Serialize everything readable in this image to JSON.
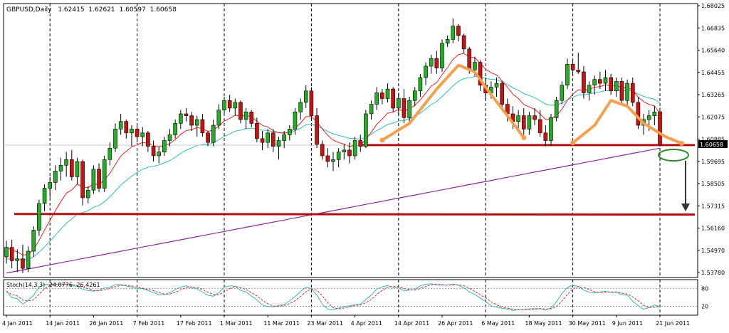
{
  "header": {
    "symbol": "GBPUSD,Daily",
    "open": "1.62415",
    "high": "1.62621",
    "low": "1.60597",
    "close": "1.60658"
  },
  "indicator": {
    "label": "Stoch(14,3,3)",
    "main": "24.0776",
    "signal": "26.4261",
    "levels": [
      "80",
      "20"
    ]
  },
  "colors": {
    "up_candle": "#22b022",
    "down_candle": "#cc1111",
    "ma_fast": "#ee2222",
    "ma_mid": "#33bbbb",
    "ma_slow": "#8a2a9a",
    "support_line": "#b01010",
    "pattern": "#f4a04c",
    "stoch_main": "#33bbbb",
    "stoch_signal": "#ee2222",
    "current_price_box": "#000000"
  },
  "chart_data": {
    "type": "candlestick",
    "title": "GBPUSD,Daily",
    "y_ticks": [
      "1.68025",
      "1.66835",
      "1.65640",
      "1.64455",
      "1.63265",
      "1.62075",
      "1.60885",
      "1.59695",
      "1.58505",
      "1.57315",
      "1.56160",
      "1.54970",
      "1.53780"
    ],
    "x_ticks": [
      "4 Jan 2011",
      "14 Jan 2011",
      "26 Jan 2011",
      "7 Feb 2011",
      "17 Feb 2011",
      "1 Mar 2011",
      "11 Mar 2011",
      "23 Mar 2011",
      "4 Apr 2011",
      "14 Apr 2011",
      "26 Apr 2011",
      "6 May 2011",
      "18 May 2011",
      "30 May 2011",
      "9 Jun 2011",
      "21 Jun 2011"
    ],
    "ylim": [
      1.5372,
      1.6808
    ],
    "current_price": "1.60658",
    "support_level": 1.6066,
    "target_level": 1.5705,
    "stoch_ylim": [
      0,
      100
    ],
    "candles": [
      {
        "d": "2011-01-04",
        "o": 1.548,
        "h": 1.5565,
        "l": 1.5445,
        "c": 1.553
      },
      {
        "d": "2011-01-05",
        "o": 1.553,
        "h": 1.557,
        "l": 1.542,
        "c": 1.546
      },
      {
        "d": "2011-01-06",
        "o": 1.546,
        "h": 1.552,
        "l": 1.54,
        "c": 1.547
      },
      {
        "d": "2011-01-07",
        "o": 1.547,
        "h": 1.5545,
        "l": 1.5395,
        "c": 1.542
      },
      {
        "d": "2011-01-10",
        "o": 1.542,
        "h": 1.5535,
        "l": 1.54,
        "c": 1.551
      },
      {
        "d": "2011-01-11",
        "o": 1.551,
        "h": 1.564,
        "l": 1.548,
        "c": 1.562
      },
      {
        "d": "2011-01-12",
        "o": 1.562,
        "h": 1.578,
        "l": 1.559,
        "c": 1.576
      },
      {
        "d": "2011-01-13",
        "o": 1.576,
        "h": 1.586,
        "l": 1.572,
        "c": 1.584
      },
      {
        "d": "2011-01-14",
        "o": 1.584,
        "h": 1.59,
        "l": 1.579,
        "c": 1.587
      },
      {
        "d": "2011-01-17",
        "o": 1.587,
        "h": 1.596,
        "l": 1.583,
        "c": 1.593
      },
      {
        "d": "2011-01-18",
        "o": 1.593,
        "h": 1.6,
        "l": 1.588,
        "c": 1.596
      },
      {
        "d": "2011-01-19",
        "o": 1.596,
        "h": 1.603,
        "l": 1.59,
        "c": 1.599
      },
      {
        "d": "2011-01-20",
        "o": 1.599,
        "h": 1.604,
        "l": 1.588,
        "c": 1.59
      },
      {
        "d": "2011-01-21",
        "o": 1.59,
        "h": 1.6,
        "l": 1.586,
        "c": 1.598
      },
      {
        "d": "2011-01-24",
        "o": 1.598,
        "h": 1.599,
        "l": 1.575,
        "c": 1.579
      },
      {
        "d": "2011-01-25",
        "o": 1.579,
        "h": 1.585,
        "l": 1.576,
        "c": 1.583
      },
      {
        "d": "2011-01-26",
        "o": 1.583,
        "h": 1.596,
        "l": 1.581,
        "c": 1.594
      },
      {
        "d": "2011-01-27",
        "o": 1.594,
        "h": 1.597,
        "l": 1.582,
        "c": 1.584
      },
      {
        "d": "2011-01-28",
        "o": 1.584,
        "h": 1.601,
        "l": 1.582,
        "c": 1.599
      },
      {
        "d": "2011-01-31",
        "o": 1.599,
        "h": 1.608,
        "l": 1.596,
        "c": 1.605
      },
      {
        "d": "2011-02-01",
        "o": 1.605,
        "h": 1.618,
        "l": 1.603,
        "c": 1.615
      },
      {
        "d": "2011-02-02",
        "o": 1.615,
        "h": 1.623,
        "l": 1.612,
        "c": 1.619
      },
      {
        "d": "2011-02-03",
        "o": 1.619,
        "h": 1.62,
        "l": 1.61,
        "c": 1.613
      },
      {
        "d": "2011-02-04",
        "o": 1.613,
        "h": 1.617,
        "l": 1.606,
        "c": 1.615
      },
      {
        "d": "2011-02-07",
        "o": 1.615,
        "h": 1.617,
        "l": 1.608,
        "c": 1.611
      },
      {
        "d": "2011-02-08",
        "o": 1.611,
        "h": 1.616,
        "l": 1.606,
        "c": 1.613
      },
      {
        "d": "2011-02-09",
        "o": 1.613,
        "h": 1.614,
        "l": 1.603,
        "c": 1.606
      },
      {
        "d": "2011-02-10",
        "o": 1.606,
        "h": 1.609,
        "l": 1.598,
        "c": 1.601
      },
      {
        "d": "2011-02-11",
        "o": 1.601,
        "h": 1.606,
        "l": 1.597,
        "c": 1.603
      },
      {
        "d": "2011-02-14",
        "o": 1.603,
        "h": 1.611,
        "l": 1.601,
        "c": 1.609
      },
      {
        "d": "2011-02-15",
        "o": 1.609,
        "h": 1.615,
        "l": 1.606,
        "c": 1.612
      },
      {
        "d": "2011-02-16",
        "o": 1.612,
        "h": 1.62,
        "l": 1.61,
        "c": 1.618
      },
      {
        "d": "2011-02-17",
        "o": 1.618,
        "h": 1.625,
        "l": 1.615,
        "c": 1.623
      },
      {
        "d": "2011-02-18",
        "o": 1.623,
        "h": 1.626,
        "l": 1.619,
        "c": 1.622
      },
      {
        "d": "2011-02-21",
        "o": 1.622,
        "h": 1.624,
        "l": 1.614,
        "c": 1.617
      },
      {
        "d": "2011-02-22",
        "o": 1.617,
        "h": 1.622,
        "l": 1.611,
        "c": 1.62
      },
      {
        "d": "2011-02-23",
        "o": 1.62,
        "h": 1.623,
        "l": 1.611,
        "c": 1.613
      },
      {
        "d": "2011-02-24",
        "o": 1.613,
        "h": 1.614,
        "l": 1.606,
        "c": 1.608
      },
      {
        "d": "2011-02-25",
        "o": 1.608,
        "h": 1.62,
        "l": 1.606,
        "c": 1.617
      },
      {
        "d": "2011-02-28",
        "o": 1.617,
        "h": 1.628,
        "l": 1.615,
        "c": 1.625
      },
      {
        "d": "2011-03-01",
        "o": 1.625,
        "h": 1.632,
        "l": 1.623,
        "c": 1.63
      },
      {
        "d": "2011-03-02",
        "o": 1.63,
        "h": 1.633,
        "l": 1.624,
        "c": 1.626
      },
      {
        "d": "2011-03-03",
        "o": 1.626,
        "h": 1.631,
        "l": 1.622,
        "c": 1.629
      },
      {
        "d": "2011-03-04",
        "o": 1.629,
        "h": 1.63,
        "l": 1.618,
        "c": 1.62
      },
      {
        "d": "2011-03-07",
        "o": 1.62,
        "h": 1.626,
        "l": 1.615,
        "c": 1.624
      },
      {
        "d": "2011-03-08",
        "o": 1.624,
        "h": 1.625,
        "l": 1.616,
        "c": 1.618
      },
      {
        "d": "2011-03-09",
        "o": 1.618,
        "h": 1.621,
        "l": 1.608,
        "c": 1.61
      },
      {
        "d": "2011-03-10",
        "o": 1.61,
        "h": 1.614,
        "l": 1.604,
        "c": 1.608
      },
      {
        "d": "2011-03-11",
        "o": 1.608,
        "h": 1.615,
        "l": 1.605,
        "c": 1.613
      },
      {
        "d": "2011-03-14",
        "o": 1.613,
        "h": 1.615,
        "l": 1.603,
        "c": 1.606
      },
      {
        "d": "2011-03-15",
        "o": 1.606,
        "h": 1.611,
        "l": 1.599,
        "c": 1.609
      },
      {
        "d": "2011-03-16",
        "o": 1.609,
        "h": 1.614,
        "l": 1.605,
        "c": 1.612
      },
      {
        "d": "2011-03-17",
        "o": 1.612,
        "h": 1.617,
        "l": 1.609,
        "c": 1.615
      },
      {
        "d": "2011-03-18",
        "o": 1.615,
        "h": 1.626,
        "l": 1.612,
        "c": 1.624
      },
      {
        "d": "2011-03-21",
        "o": 1.624,
        "h": 1.631,
        "l": 1.62,
        "c": 1.629
      },
      {
        "d": "2011-03-22",
        "o": 1.629,
        "h": 1.638,
        "l": 1.626,
        "c": 1.635
      },
      {
        "d": "2011-03-23",
        "o": 1.635,
        "h": 1.637,
        "l": 1.62,
        "c": 1.622
      },
      {
        "d": "2011-03-24",
        "o": 1.622,
        "h": 1.626,
        "l": 1.605,
        "c": 1.607
      },
      {
        "d": "2011-03-25",
        "o": 1.607,
        "h": 1.609,
        "l": 1.599,
        "c": 1.601
      },
      {
        "d": "2011-03-28",
        "o": 1.601,
        "h": 1.605,
        "l": 1.595,
        "c": 1.598
      },
      {
        "d": "2011-03-29",
        "o": 1.598,
        "h": 1.603,
        "l": 1.593,
        "c": 1.599
      },
      {
        "d": "2011-03-30",
        "o": 1.599,
        "h": 1.605,
        "l": 1.595,
        "c": 1.603
      },
      {
        "d": "2011-03-31",
        "o": 1.603,
        "h": 1.607,
        "l": 1.599,
        "c": 1.604
      },
      {
        "d": "2011-04-01",
        "o": 1.604,
        "h": 1.608,
        "l": 1.597,
        "c": 1.601
      },
      {
        "d": "2011-04-04",
        "o": 1.601,
        "h": 1.611,
        "l": 1.599,
        "c": 1.609
      },
      {
        "d": "2011-04-05",
        "o": 1.609,
        "h": 1.612,
        "l": 1.603,
        "c": 1.606
      },
      {
        "d": "2011-04-06",
        "o": 1.606,
        "h": 1.625,
        "l": 1.605,
        "c": 1.623
      },
      {
        "d": "2011-04-07",
        "o": 1.623,
        "h": 1.63,
        "l": 1.62,
        "c": 1.628
      },
      {
        "d": "2011-04-08",
        "o": 1.628,
        "h": 1.637,
        "l": 1.625,
        "c": 1.634
      },
      {
        "d": "2011-04-11",
        "o": 1.634,
        "h": 1.636,
        "l": 1.628,
        "c": 1.631
      },
      {
        "d": "2011-04-12",
        "o": 1.631,
        "h": 1.639,
        "l": 1.629,
        "c": 1.636
      },
      {
        "d": "2011-04-13",
        "o": 1.636,
        "h": 1.637,
        "l": 1.624,
        "c": 1.626
      },
      {
        "d": "2011-04-14",
        "o": 1.626,
        "h": 1.634,
        "l": 1.622,
        "c": 1.631
      },
      {
        "d": "2011-04-15",
        "o": 1.631,
        "h": 1.636,
        "l": 1.618,
        "c": 1.621
      },
      {
        "d": "2011-04-18",
        "o": 1.621,
        "h": 1.632,
        "l": 1.619,
        "c": 1.63
      },
      {
        "d": "2011-04-19",
        "o": 1.63,
        "h": 1.637,
        "l": 1.627,
        "c": 1.635
      },
      {
        "d": "2011-04-20",
        "o": 1.635,
        "h": 1.644,
        "l": 1.632,
        "c": 1.642
      },
      {
        "d": "2011-04-21",
        "o": 1.642,
        "h": 1.65,
        "l": 1.638,
        "c": 1.648
      },
      {
        "d": "2011-04-22",
        "o": 1.648,
        "h": 1.654,
        "l": 1.644,
        "c": 1.652
      },
      {
        "d": "2011-04-25",
        "o": 1.652,
        "h": 1.656,
        "l": 1.644,
        "c": 1.647
      },
      {
        "d": "2011-04-26",
        "o": 1.647,
        "h": 1.662,
        "l": 1.645,
        "c": 1.66
      },
      {
        "d": "2011-04-27",
        "o": 1.66,
        "h": 1.664,
        "l": 1.658,
        "c": 1.662
      },
      {
        "d": "2011-04-28",
        "o": 1.662,
        "h": 1.673,
        "l": 1.66,
        "c": 1.669
      },
      {
        "d": "2011-04-29",
        "o": 1.669,
        "h": 1.67,
        "l": 1.661,
        "c": 1.664
      },
      {
        "d": "2011-05-02",
        "o": 1.664,
        "h": 1.665,
        "l": 1.655,
        "c": 1.657
      },
      {
        "d": "2011-05-03",
        "o": 1.657,
        "h": 1.658,
        "l": 1.644,
        "c": 1.646
      },
      {
        "d": "2011-05-04",
        "o": 1.646,
        "h": 1.653,
        "l": 1.643,
        "c": 1.65
      },
      {
        "d": "2011-05-05",
        "o": 1.65,
        "h": 1.651,
        "l": 1.635,
        "c": 1.638
      },
      {
        "d": "2011-05-06",
        "o": 1.638,
        "h": 1.642,
        "l": 1.63,
        "c": 1.634
      },
      {
        "d": "2011-05-09",
        "o": 1.634,
        "h": 1.64,
        "l": 1.631,
        "c": 1.637
      },
      {
        "d": "2011-05-10",
        "o": 1.637,
        "h": 1.642,
        "l": 1.632,
        "c": 1.639
      },
      {
        "d": "2011-05-11",
        "o": 1.639,
        "h": 1.64,
        "l": 1.626,
        "c": 1.628
      },
      {
        "d": "2011-05-12",
        "o": 1.628,
        "h": 1.631,
        "l": 1.619,
        "c": 1.623
      },
      {
        "d": "2011-05-13",
        "o": 1.623,
        "h": 1.627,
        "l": 1.615,
        "c": 1.619
      },
      {
        "d": "2011-05-16",
        "o": 1.619,
        "h": 1.625,
        "l": 1.614,
        "c": 1.622
      },
      {
        "d": "2011-05-17",
        "o": 1.622,
        "h": 1.626,
        "l": 1.612,
        "c": 1.615
      },
      {
        "d": "2011-05-18",
        "o": 1.615,
        "h": 1.624,
        "l": 1.612,
        "c": 1.622
      },
      {
        "d": "2011-05-19",
        "o": 1.622,
        "h": 1.626,
        "l": 1.617,
        "c": 1.62
      },
      {
        "d": "2011-05-20",
        "o": 1.62,
        "h": 1.625,
        "l": 1.611,
        "c": 1.613
      },
      {
        "d": "2011-05-23",
        "o": 1.613,
        "h": 1.617,
        "l": 1.606,
        "c": 1.609
      },
      {
        "d": "2011-05-24",
        "o": 1.609,
        "h": 1.623,
        "l": 1.606,
        "c": 1.621
      },
      {
        "d": "2011-05-25",
        "o": 1.621,
        "h": 1.632,
        "l": 1.619,
        "c": 1.63
      },
      {
        "d": "2011-05-26",
        "o": 1.63,
        "h": 1.64,
        "l": 1.628,
        "c": 1.638
      },
      {
        "d": "2011-05-27",
        "o": 1.638,
        "h": 1.652,
        "l": 1.636,
        "c": 1.649
      },
      {
        "d": "2011-05-30",
        "o": 1.649,
        "h": 1.651,
        "l": 1.643,
        "c": 1.646
      },
      {
        "d": "2011-05-31",
        "o": 1.646,
        "h": 1.655,
        "l": 1.644,
        "c": 1.645
      },
      {
        "d": "2011-06-01",
        "o": 1.645,
        "h": 1.648,
        "l": 1.631,
        "c": 1.634
      },
      {
        "d": "2011-06-02",
        "o": 1.634,
        "h": 1.64,
        "l": 1.63,
        "c": 1.638
      },
      {
        "d": "2011-06-03",
        "o": 1.638,
        "h": 1.643,
        "l": 1.633,
        "c": 1.641
      },
      {
        "d": "2011-06-06",
        "o": 1.641,
        "h": 1.645,
        "l": 1.636,
        "c": 1.639
      },
      {
        "d": "2011-06-07",
        "o": 1.639,
        "h": 1.646,
        "l": 1.635,
        "c": 1.642
      },
      {
        "d": "2011-06-08",
        "o": 1.642,
        "h": 1.644,
        "l": 1.633,
        "c": 1.635
      },
      {
        "d": "2011-06-09",
        "o": 1.635,
        "h": 1.642,
        "l": 1.632,
        "c": 1.64
      },
      {
        "d": "2011-06-10",
        "o": 1.64,
        "h": 1.642,
        "l": 1.628,
        "c": 1.63
      },
      {
        "d": "2011-06-13",
        "o": 1.63,
        "h": 1.641,
        "l": 1.627,
        "c": 1.639
      },
      {
        "d": "2011-06-14",
        "o": 1.639,
        "h": 1.642,
        "l": 1.627,
        "c": 1.629
      },
      {
        "d": "2011-06-15",
        "o": 1.629,
        "h": 1.632,
        "l": 1.615,
        "c": 1.617
      },
      {
        "d": "2011-06-16",
        "o": 1.617,
        "h": 1.623,
        "l": 1.612,
        "c": 1.62
      },
      {
        "d": "2011-06-17",
        "o": 1.62,
        "h": 1.625,
        "l": 1.614,
        "c": 1.622
      },
      {
        "d": "2011-06-20",
        "o": 1.622,
        "h": 1.627,
        "l": 1.617,
        "c": 1.624
      },
      {
        "d": "2011-06-21",
        "o": 1.6241,
        "h": 1.6262,
        "l": 1.606,
        "c": 1.6066
      }
    ]
  }
}
